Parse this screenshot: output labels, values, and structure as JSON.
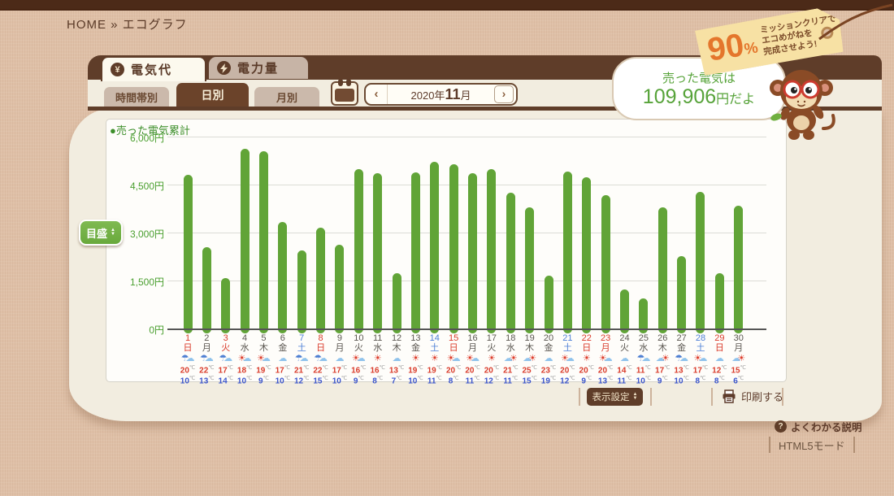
{
  "page": {
    "breadcrumb": "HOME » エコグラフ"
  },
  "mission_tag": {
    "percent": "90",
    "percent_sign": "%",
    "lines": [
      "ミッションクリアで",
      "エコめがねを",
      "完成させよう!"
    ]
  },
  "speech_bubble": {
    "line1": "売った電気は",
    "amount": "109,906",
    "suffix": "円だよ"
  },
  "tabs": [
    {
      "name": "tab-electricity-cost",
      "label": "電気代",
      "icon": "yen-icon",
      "active": true
    },
    {
      "name": "tab-electricity-amount",
      "label": "電力量",
      "icon": "bolt-icon",
      "active": false
    }
  ],
  "subtabs": [
    {
      "name": "subtab-by-time",
      "label": "時間帯別",
      "active": false
    },
    {
      "name": "subtab-by-day",
      "label": "日別",
      "active": true
    },
    {
      "name": "subtab-by-month",
      "label": "月別",
      "active": false
    }
  ],
  "date_nav": {
    "prev": "‹",
    "year": "2020年",
    "month": "11",
    "month_unit": "月",
    "next": "›"
  },
  "scale_button": {
    "label": "目盛"
  },
  "footer": {
    "display_settings": "表示設定",
    "print": "印刷する"
  },
  "links": {
    "help": "よくわかる説明",
    "mode": "HTML5モード"
  },
  "chart_data": {
    "type": "bar",
    "title": "売った電気累計",
    "legend": "売った電気累計",
    "month_label": "2020年11月",
    "unit": "円",
    "ylim": [
      0,
      6000
    ],
    "yticks": [
      {
        "v": 6000,
        "label": "6,000円"
      },
      {
        "v": 4500,
        "label": "4,500円"
      },
      {
        "v": 3000,
        "label": "3,000円"
      },
      {
        "v": 1500,
        "label": "1,500円"
      },
      {
        "v": 0,
        "label": "0円"
      }
    ],
    "bar_color": "#61a437",
    "daytype_colors": {
      "holiday": "#d93b2b",
      "saturday": "#4d7fd6",
      "weekday": "#5a5650"
    },
    "weather_icons": {
      "rain": [
        [
          "☂",
          "#4e7fd2"
        ],
        [
          "☁",
          "#90c3ec"
        ]
      ],
      "sun": [
        [
          "☀",
          "#dd3b2a"
        ]
      ],
      "sun-cloud": [
        [
          "☀",
          "#dd3b2a"
        ],
        [
          "☁",
          "#90c3ec"
        ]
      ],
      "cloud-sun": [
        [
          "☁",
          "#90c3ec"
        ],
        [
          "☀",
          "#dd3b2a"
        ]
      ],
      "cloud": [
        [
          "☁",
          "#90c3ec"
        ]
      ]
    },
    "days": [
      {
        "day": 1,
        "wd": "日",
        "type": "holiday",
        "value": 4800,
        "weather": "rain",
        "hi": 20,
        "lo": 10
      },
      {
        "day": 2,
        "wd": "月",
        "type": "weekday",
        "value": 2550,
        "weather": "rain",
        "hi": 22,
        "lo": 13
      },
      {
        "day": 3,
        "wd": "火",
        "type": "holiday",
        "value": 1580,
        "weather": "rain",
        "hi": 17,
        "lo": 14
      },
      {
        "day": 4,
        "wd": "水",
        "type": "weekday",
        "value": 5630,
        "weather": "sun-cloud",
        "hi": 18,
        "lo": 10
      },
      {
        "day": 5,
        "wd": "木",
        "type": "weekday",
        "value": 5540,
        "weather": "sun-cloud",
        "hi": 19,
        "lo": 9
      },
      {
        "day": 6,
        "wd": "金",
        "type": "weekday",
        "value": 3320,
        "weather": "cloud",
        "hi": 17,
        "lo": 10
      },
      {
        "day": 7,
        "wd": "土",
        "type": "saturday",
        "value": 2450,
        "weather": "rain",
        "hi": 21,
        "lo": 12
      },
      {
        "day": 8,
        "wd": "日",
        "type": "holiday",
        "value": 3140,
        "weather": "rain",
        "hi": 22,
        "lo": 15
      },
      {
        "day": 9,
        "wd": "月",
        "type": "weekday",
        "value": 2620,
        "weather": "cloud",
        "hi": 17,
        "lo": 10
      },
      {
        "day": 10,
        "wd": "火",
        "type": "weekday",
        "value": 4980,
        "weather": "sun-cloud",
        "hi": 16,
        "lo": 9
      },
      {
        "day": 11,
        "wd": "水",
        "type": "weekday",
        "value": 4860,
        "weather": "sun",
        "hi": 16,
        "lo": 8
      },
      {
        "day": 12,
        "wd": "木",
        "type": "weekday",
        "value": 1730,
        "weather": "cloud",
        "hi": 13,
        "lo": 7
      },
      {
        "day": 13,
        "wd": "金",
        "type": "weekday",
        "value": 4890,
        "weather": "sun",
        "hi": 19,
        "lo": 10
      },
      {
        "day": 14,
        "wd": "土",
        "type": "saturday",
        "value": 5200,
        "weather": "sun",
        "hi": 19,
        "lo": 11
      },
      {
        "day": 15,
        "wd": "日",
        "type": "holiday",
        "value": 5140,
        "weather": "sun-cloud",
        "hi": 20,
        "lo": 8
      },
      {
        "day": 16,
        "wd": "月",
        "type": "weekday",
        "value": 4860,
        "weather": "sun-cloud",
        "hi": 20,
        "lo": 11
      },
      {
        "day": 17,
        "wd": "火",
        "type": "weekday",
        "value": 4980,
        "weather": "sun",
        "hi": 20,
        "lo": 12
      },
      {
        "day": 18,
        "wd": "水",
        "type": "weekday",
        "value": 4250,
        "weather": "cloud-sun",
        "hi": 21,
        "lo": 11
      },
      {
        "day": 19,
        "wd": "木",
        "type": "weekday",
        "value": 3790,
        "weather": "cloud-sun",
        "hi": 25,
        "lo": 15
      },
      {
        "day": 20,
        "wd": "金",
        "type": "weekday",
        "value": 1660,
        "weather": "cloud",
        "hi": 23,
        "lo": 19
      },
      {
        "day": 21,
        "wd": "土",
        "type": "saturday",
        "value": 4910,
        "weather": "sun-cloud",
        "hi": 20,
        "lo": 12
      },
      {
        "day": 22,
        "wd": "日",
        "type": "holiday",
        "value": 4730,
        "weather": "sun",
        "hi": 20,
        "lo": 9
      },
      {
        "day": 23,
        "wd": "月",
        "type": "holiday",
        "value": 4160,
        "weather": "sun-cloud",
        "hi": 20,
        "lo": 13
      },
      {
        "day": 24,
        "wd": "火",
        "type": "weekday",
        "value": 1210,
        "weather": "cloud",
        "hi": 14,
        "lo": 11
      },
      {
        "day": 25,
        "wd": "水",
        "type": "weekday",
        "value": 940,
        "weather": "rain",
        "hi": 11,
        "lo": 10
      },
      {
        "day": 26,
        "wd": "木",
        "type": "weekday",
        "value": 3790,
        "weather": "cloud-sun",
        "hi": 17,
        "lo": 9
      },
      {
        "day": 27,
        "wd": "金",
        "type": "weekday",
        "value": 2260,
        "weather": "rain",
        "hi": 13,
        "lo": 10
      },
      {
        "day": 28,
        "wd": "土",
        "type": "saturday",
        "value": 4260,
        "weather": "sun-cloud",
        "hi": 17,
        "lo": 8
      },
      {
        "day": 29,
        "wd": "日",
        "type": "holiday",
        "value": 1730,
        "weather": "cloud",
        "hi": 12,
        "lo": 8
      },
      {
        "day": 30,
        "wd": "月",
        "type": "weekday",
        "value": 3850,
        "weather": "cloud-sun",
        "hi": 15,
        "lo": 6
      }
    ]
  }
}
